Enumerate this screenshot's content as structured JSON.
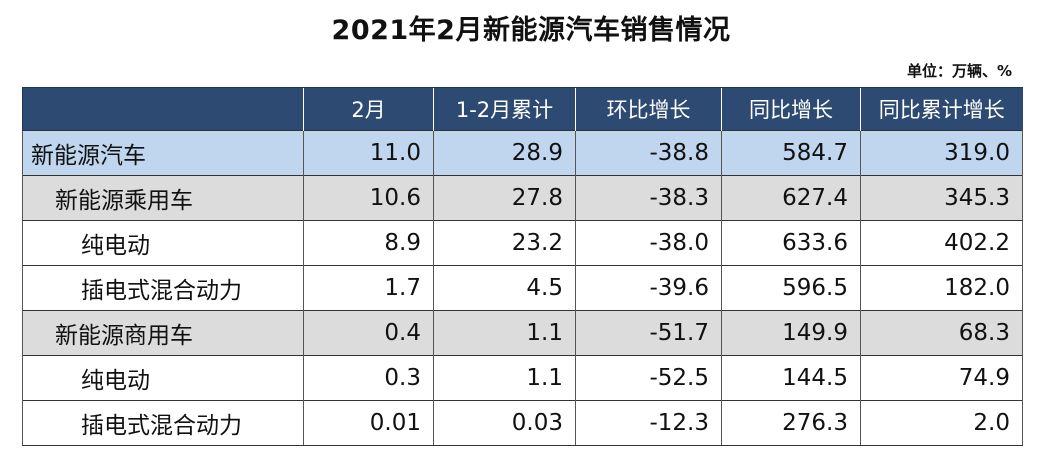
{
  "title": "2021年2月新能源汽车销售情况",
  "unit": "单位：万辆、%",
  "colors": {
    "header_bg": "#2c4a72",
    "level0_bg": "#bfd6ee",
    "level1_bg": "#dcdcdc",
    "level2_bg": "#ffffff"
  },
  "table": {
    "headers": [
      "",
      "2月",
      "1-2月累计",
      "环比增长",
      "同比增长",
      "同比累计增长"
    ],
    "rows": [
      {
        "level": 0,
        "cells": [
          "新能源汽车",
          "11.0",
          "28.9",
          "-38.8",
          "584.7",
          "319.0"
        ]
      },
      {
        "level": 1,
        "cells": [
          "新能源乘用车",
          "10.6",
          "27.8",
          "-38.3",
          "627.4",
          "345.3"
        ]
      },
      {
        "level": 2,
        "cells": [
          "纯电动",
          "8.9",
          "23.2",
          "-38.0",
          "633.6",
          "402.2"
        ]
      },
      {
        "level": 2,
        "cells": [
          "插电式混合动力",
          "1.7",
          "4.5",
          "-39.6",
          "596.5",
          "182.0"
        ]
      },
      {
        "level": 1,
        "cells": [
          "新能源商用车",
          "0.4",
          "1.1",
          "-51.7",
          "149.9",
          "68.3"
        ]
      },
      {
        "level": 2,
        "cells": [
          "纯电动",
          "0.3",
          "1.1",
          "-52.5",
          "144.5",
          "74.9"
        ]
      },
      {
        "level": 2,
        "cells": [
          "插电式混合动力",
          "0.01",
          "0.03",
          "-12.3",
          "276.3",
          "2.0"
        ]
      }
    ]
  }
}
